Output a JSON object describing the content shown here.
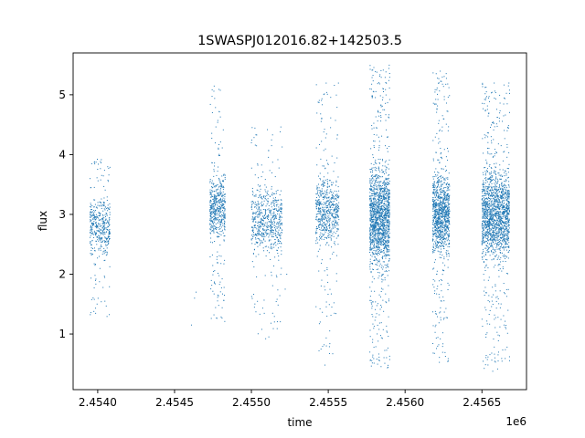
{
  "chart_data": {
    "type": "scatter",
    "title": "1SWASPJ012016.82+142503.5",
    "xlabel": "time",
    "ylabel": "flux",
    "x_offset_label": "1e6",
    "xlim": [
      2.45384,
      2.45679
    ],
    "ylim": [
      0.07,
      5.7
    ],
    "x_ticks": [
      {
        "value": 2.454,
        "label": "2.4540"
      },
      {
        "value": 2.4545,
        "label": "2.4545"
      },
      {
        "value": 2.455,
        "label": "2.4550"
      },
      {
        "value": 2.4555,
        "label": "2.4555"
      },
      {
        "value": 2.456,
        "label": "2.4560"
      },
      {
        "value": 2.4565,
        "label": "2.4565"
      }
    ],
    "y_ticks": [
      {
        "value": 1,
        "label": "1"
      },
      {
        "value": 2,
        "label": "2"
      },
      {
        "value": 3,
        "label": "3"
      },
      {
        "value": 4,
        "label": "4"
      },
      {
        "value": 5,
        "label": "5"
      }
    ],
    "grid": false,
    "legend": "none",
    "marker_color": "#1f77b4",
    "clusters": [
      {
        "x_start": 2.45395,
        "x_end": 2.45408,
        "y_low": 2.2,
        "y_high": 3.4,
        "y_min": 1.2,
        "y_max": 4.0,
        "points": 450
      },
      {
        "x_start": 2.45473,
        "x_end": 2.45483,
        "y_low": 2.4,
        "y_high": 3.8,
        "y_min": 1.2,
        "y_max": 5.2,
        "points": 550
      },
      {
        "x_start": 2.455,
        "x_end": 2.4552,
        "y_low": 2.2,
        "y_high": 3.6,
        "y_min": 0.9,
        "y_max": 4.5,
        "points": 650
      },
      {
        "x_start": 2.45542,
        "x_end": 2.45557,
        "y_low": 2.3,
        "y_high": 3.8,
        "y_min": 0.45,
        "y_max": 5.2,
        "points": 650
      },
      {
        "x_start": 2.45577,
        "x_end": 2.4559,
        "y_low": 1.8,
        "y_high": 4.1,
        "y_min": 0.4,
        "y_max": 5.5,
        "points": 1600
      },
      {
        "x_start": 2.45618,
        "x_end": 2.45629,
        "y_low": 2.1,
        "y_high": 3.9,
        "y_min": 0.5,
        "y_max": 5.4,
        "points": 1100
      },
      {
        "x_start": 2.4565,
        "x_end": 2.45668,
        "y_low": 2.0,
        "y_high": 4.0,
        "y_min": 0.35,
        "y_max": 5.2,
        "points": 1700
      }
    ],
    "sparse_points": [
      {
        "x": 2.45461,
        "y": 1.15
      },
      {
        "x": 2.45463,
        "y": 1.6
      },
      {
        "x": 2.45464,
        "y": 1.7
      },
      {
        "x": 2.45522,
        "y": 1.75
      },
      {
        "x": 2.45523,
        "y": 2.0
      },
      {
        "x": 2.45544,
        "y": 0.72
      }
    ]
  }
}
